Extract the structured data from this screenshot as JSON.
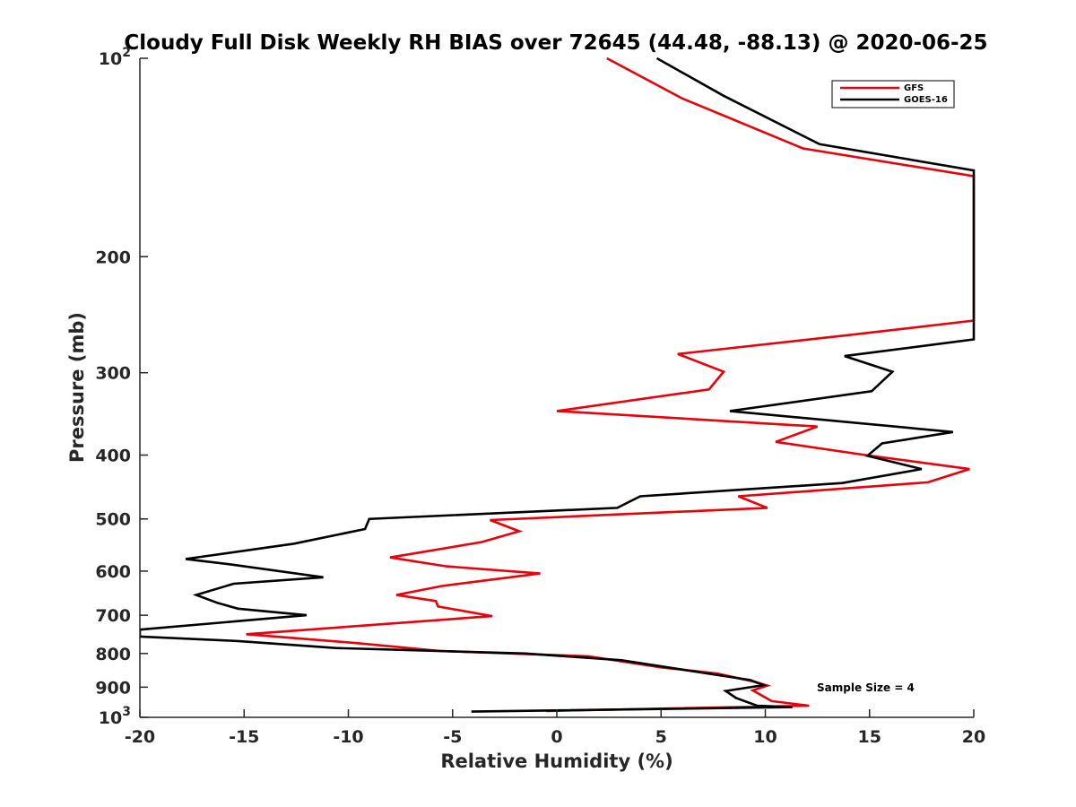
{
  "chart_data": {
    "type": "line",
    "title": "Cloudy Full Disk Weekly RH BIAS over 72645 (44.48, -88.13) @ 2020-06-25",
    "xlabel": "Relative Humidity (%)",
    "ylabel": "Pressure (mb)",
    "xlim": [
      -20,
      20
    ],
    "ylim": [
      100,
      1000
    ],
    "yscale": "log",
    "y_reversed": true,
    "grid": false,
    "legend_position": "top-right",
    "x_ticks": [
      -20,
      -15,
      -10,
      -5,
      0,
      5,
      10,
      15,
      20
    ],
    "x_tick_labels": [
      "-20",
      "-15",
      "-10",
      "-5",
      "0",
      "5",
      "10",
      "15",
      "20"
    ],
    "y_ticks": [
      100,
      200,
      300,
      400,
      500,
      600,
      700,
      800,
      900,
      1000
    ],
    "y_tick_labels": [
      {
        "base": "10",
        "exp": "2"
      },
      {
        "base": "200",
        "exp": ""
      },
      {
        "base": "300",
        "exp": ""
      },
      {
        "base": "400",
        "exp": ""
      },
      {
        "base": "500",
        "exp": ""
      },
      {
        "base": "600",
        "exp": ""
      },
      {
        "base": "700",
        "exp": ""
      },
      {
        "base": "800",
        "exp": ""
      },
      {
        "base": "900",
        "exp": ""
      },
      {
        "base": "10",
        "exp": "3"
      }
    ],
    "annotation": "Sample Size = 4",
    "series": [
      {
        "name": "GFS",
        "color": "#e8000b",
        "points": [
          [
            2.4,
            100
          ],
          [
            6,
            115
          ],
          [
            11.8,
            137
          ],
          [
            20,
            151
          ],
          [
            20,
            250
          ],
          [
            14,
            263
          ],
          [
            5.8,
            281
          ],
          [
            8,
            299
          ],
          [
            7.3,
            318
          ],
          [
            0,
            343
          ],
          [
            12.5,
            362
          ],
          [
            10.5,
            382
          ],
          [
            14.8,
            400
          ],
          [
            19.8,
            420
          ],
          [
            17.8,
            440
          ],
          [
            8.7,
            462
          ],
          [
            10.1,
            481
          ],
          [
            -3.2,
            502
          ],
          [
            -1.8,
            522
          ],
          [
            -3.6,
            542
          ],
          [
            -8,
            572
          ],
          [
            -5.3,
            590
          ],
          [
            -0.8,
            605
          ],
          [
            -5.5,
            632
          ],
          [
            -7.7,
            652
          ],
          [
            -5.8,
            666
          ],
          [
            -5.7,
            679
          ],
          [
            -3.1,
            702
          ],
          [
            -14.9,
            748
          ],
          [
            -9.5,
            772
          ],
          [
            -5.6,
            793
          ],
          [
            1.5,
            808
          ],
          [
            5,
            840
          ],
          [
            7.7,
            858
          ],
          [
            9.6,
            885
          ],
          [
            10.1,
            895
          ],
          [
            9.4,
            910
          ],
          [
            10.3,
            945
          ],
          [
            12.1,
            960
          ],
          [
            -0.5,
            978
          ]
        ]
      },
      {
        "name": "GOES-16",
        "color": "#000000",
        "points": [
          [
            4.8,
            100
          ],
          [
            8,
            114
          ],
          [
            12.6,
            135
          ],
          [
            20,
            148
          ],
          [
            20,
            267
          ],
          [
            13.8,
            283
          ],
          [
            16.1,
            299
          ],
          [
            15.1,
            320
          ],
          [
            8.3,
            343
          ],
          [
            19,
            369
          ],
          [
            15.6,
            384
          ],
          [
            14.9,
            401
          ],
          [
            17.5,
            420
          ],
          [
            13.7,
            441
          ],
          [
            4,
            462
          ],
          [
            2.9,
            481
          ],
          [
            -9,
            500
          ],
          [
            -9.2,
            518
          ],
          [
            -12.6,
            545
          ],
          [
            -17.8,
            575
          ],
          [
            -15.5,
            587
          ],
          [
            -11.2,
            613
          ],
          [
            -15.5,
            627
          ],
          [
            -17.3,
            652
          ],
          [
            -16.3,
            670
          ],
          [
            -15.3,
            684
          ],
          [
            -12,
            700
          ],
          [
            -20,
            736
          ],
          [
            -20,
            754
          ],
          [
            -15.3,
            766
          ],
          [
            -10.6,
            785
          ],
          [
            -1.5,
            800
          ],
          [
            3.1,
            819
          ],
          [
            9.3,
            878
          ],
          [
            9.9,
            894
          ],
          [
            8.1,
            912
          ],
          [
            8.6,
            935
          ],
          [
            9.6,
            960
          ],
          [
            11.3,
            965
          ],
          [
            -4.1,
            980
          ]
        ]
      }
    ]
  }
}
